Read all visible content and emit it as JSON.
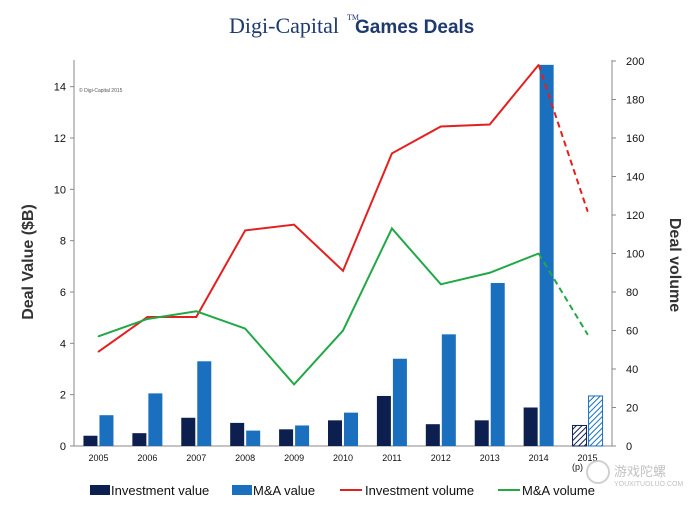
{
  "chart_data": {
    "type": "bar+line",
    "title_brand": "Digi-Capital",
    "title_tm": "TM",
    "title_main": "Games Deals",
    "copyright": "© Digi-Capital 2015",
    "categories": [
      "2005",
      "2006",
      "2007",
      "2008",
      "2009",
      "2010",
      "2011",
      "2012",
      "2013",
      "2014",
      "2015"
    ],
    "projected_label": "(p)",
    "ylabel_left": "Deal Value ($B)",
    "ylabel_right": "Deal volume",
    "ylim_left": [
      0,
      15
    ],
    "yticks_left": [
      0,
      2,
      4,
      6,
      8,
      10,
      12,
      14
    ],
    "ylim_right": [
      0,
      200
    ],
    "yticks_right": [
      0,
      20,
      40,
      60,
      80,
      100,
      120,
      140,
      160,
      180,
      200
    ],
    "series": [
      {
        "name": "Investment value",
        "kind": "bar",
        "axis": "left",
        "color": "#0c1f4f",
        "values": [
          0.4,
          0.5,
          1.1,
          0.9,
          0.65,
          1.0,
          1.95,
          0.85,
          1.0,
          1.5,
          0.8
        ]
      },
      {
        "name": "M&A value",
        "kind": "bar",
        "axis": "left",
        "color": "#1a6fbe",
        "values": [
          1.2,
          2.05,
          3.3,
          0.6,
          0.8,
          1.3,
          3.4,
          4.35,
          6.35,
          14.85,
          1.95
        ]
      },
      {
        "name": "Investment volume",
        "kind": "line",
        "axis": "right",
        "color": "#e32020",
        "values": [
          49,
          67,
          67,
          112,
          115,
          91,
          152,
          166,
          167,
          198,
          122
        ]
      },
      {
        "name": "M&A volume",
        "kind": "line",
        "axis": "right",
        "color": "#22a846",
        "values": [
          57,
          66,
          70,
          61,
          32,
          60,
          113,
          84,
          90,
          100,
          58
        ]
      }
    ],
    "projected_index": 10,
    "legend": [
      "Investment value",
      "M&A value",
      "Investment volume",
      "M&A volume"
    ],
    "grid": false
  },
  "watermark": {
    "text": "游戏陀螺",
    "url": "YOUXITUOLUO.COM"
  }
}
